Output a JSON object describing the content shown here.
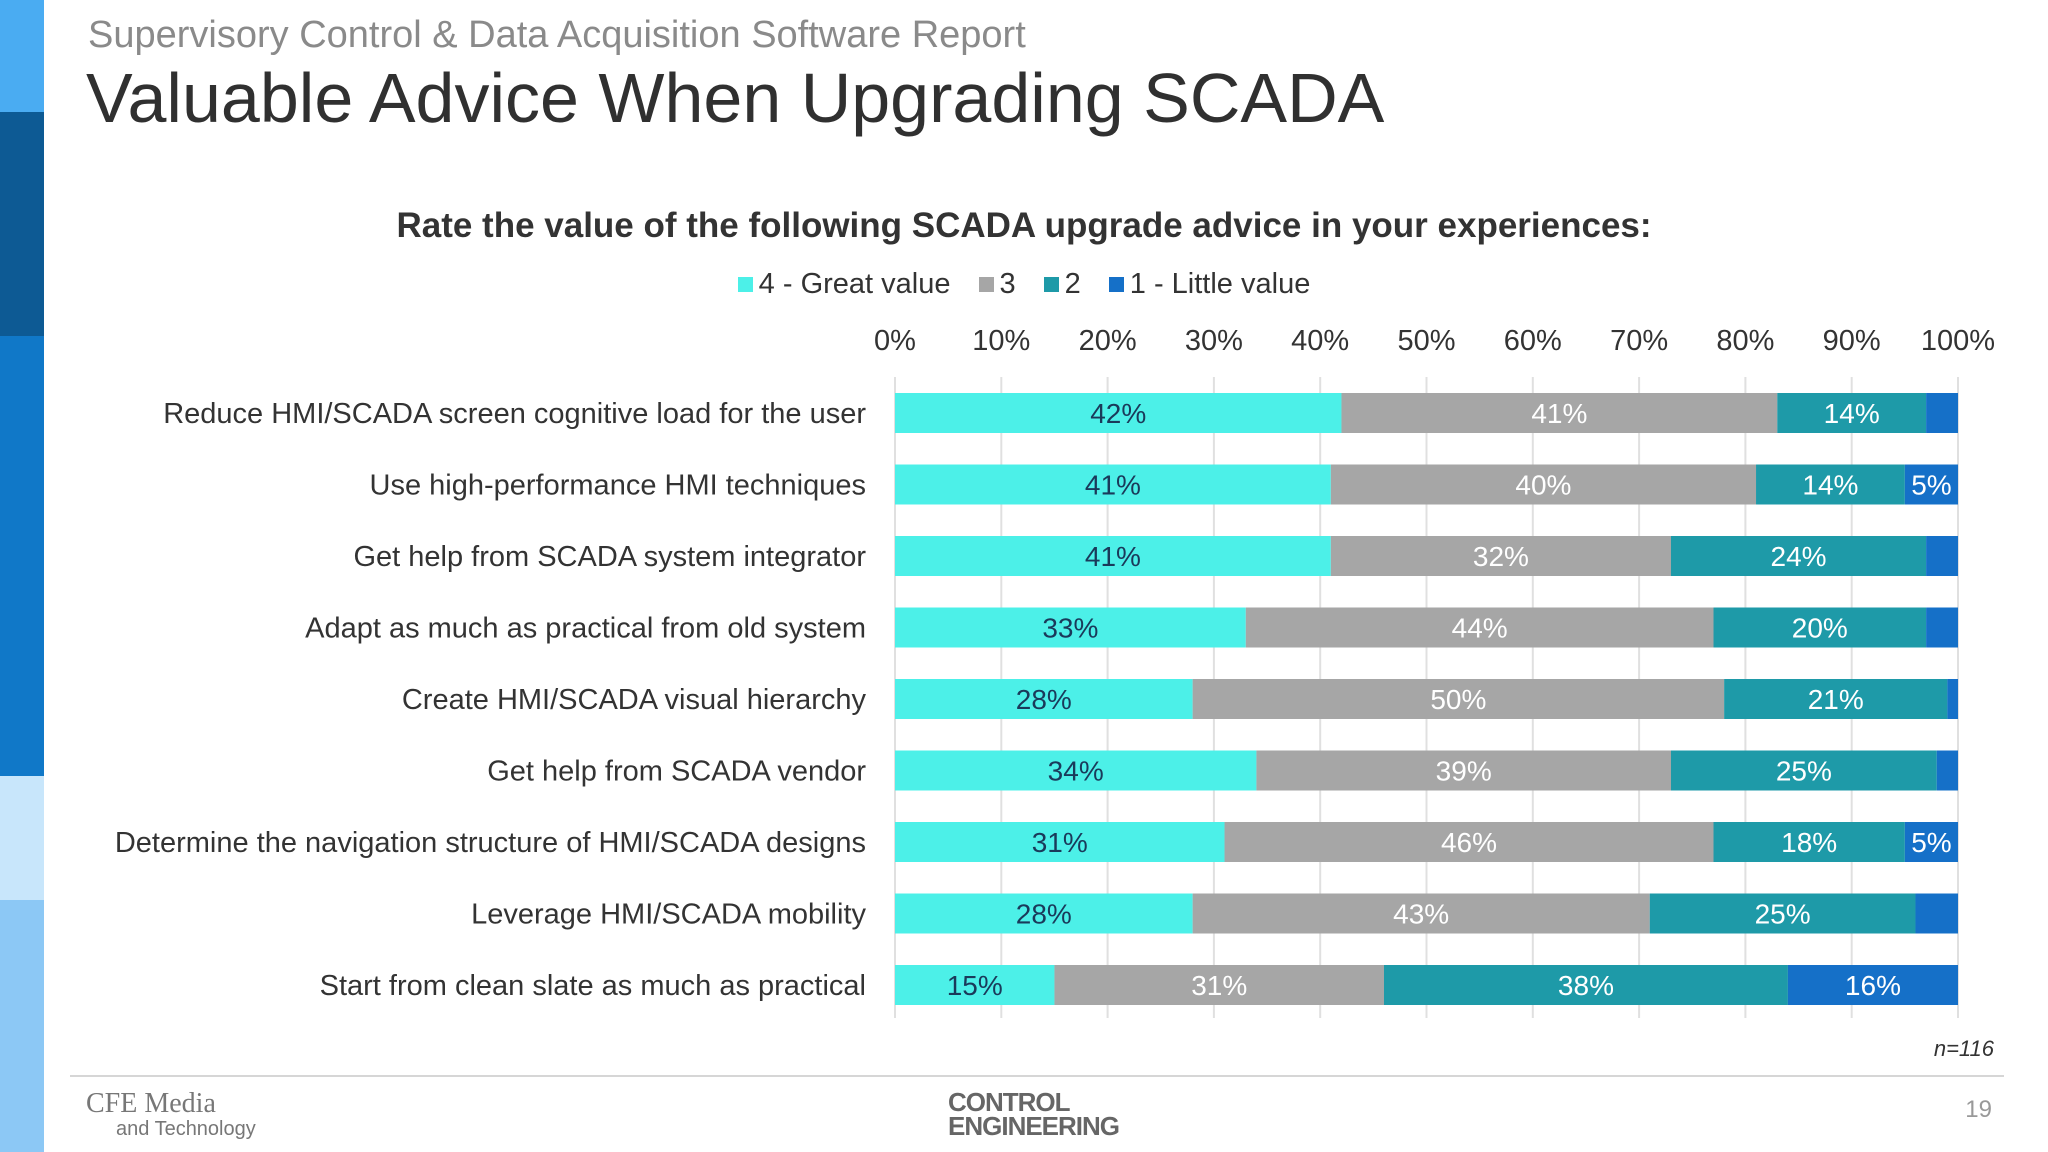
{
  "header": {
    "superhead": "Supervisory Control & Data Acquisition Software Report",
    "title": "Valuable Advice When Upgrading SCADA"
  },
  "footer": {
    "sample_size": "n=116",
    "page_number": "19",
    "logo_left_line1": "CFE Media",
    "logo_left_line2": "and Technology",
    "logo_center_line1": "CONTROL",
    "logo_center_line2": "ENGINEERING"
  },
  "colors": {
    "sidebar": [
      "#4aacf2",
      "#0d5a94",
      "#1078c8",
      "#c8e6fb",
      "#8cc8f5"
    ],
    "series": [
      "#4cf0e8",
      "#a6a6a6",
      "#1e9aa8",
      "#1570c8"
    ],
    "label_colors": [
      "#1a3a5a",
      "#ffffff",
      "#ffffff",
      "#ffffff"
    ],
    "grid": "#e0e0e0"
  },
  "chart_data": {
    "type": "bar",
    "orientation": "horizontal",
    "stacked": true,
    "title": "Rate the value of the following SCADA upgrade advice in your experiences:",
    "xlim": [
      0,
      100
    ],
    "x_ticks": [
      "0%",
      "10%",
      "20%",
      "30%",
      "40%",
      "50%",
      "60%",
      "70%",
      "80%",
      "90%",
      "100%"
    ],
    "grid": true,
    "legend_position": "top",
    "categories": [
      "Reduce HMI/SCADA screen cognitive load for the user",
      "Use high-performance HMI techniques",
      "Get help from SCADA system integrator",
      "Adapt as much as practical from old system",
      "Create HMI/SCADA visual hierarchy",
      "Get help from SCADA vendor",
      "Determine the navigation structure of HMI/SCADA designs",
      "Leverage HMI/SCADA mobility",
      "Start from clean slate as much as practical"
    ],
    "series": [
      {
        "name": "4 - Great value",
        "values": [
          42,
          41,
          41,
          33,
          28,
          34,
          31,
          28,
          15
        ]
      },
      {
        "name": "3",
        "values": [
          41,
          40,
          32,
          44,
          50,
          39,
          46,
          43,
          31
        ]
      },
      {
        "name": "2",
        "values": [
          14,
          14,
          24,
          20,
          21,
          25,
          18,
          25,
          38
        ]
      },
      {
        "name": "1 - Little value",
        "values": [
          3,
          5,
          3,
          3,
          1,
          2,
          5,
          4,
          16
        ]
      }
    ],
    "data_labels": [
      [
        "42%",
        "41%",
        "14%",
        ""
      ],
      [
        "41%",
        "40%",
        "14%",
        "5%"
      ],
      [
        "41%",
        "32%",
        "24%",
        ""
      ],
      [
        "33%",
        "44%",
        "20%",
        ""
      ],
      [
        "28%",
        "50%",
        "21%",
        ""
      ],
      [
        "34%",
        "39%",
        "25%",
        ""
      ],
      [
        "31%",
        "46%",
        "18%",
        "5%"
      ],
      [
        "28%",
        "43%",
        "25%",
        ""
      ],
      [
        "15%",
        "31%",
        "38%",
        "16%"
      ]
    ]
  }
}
